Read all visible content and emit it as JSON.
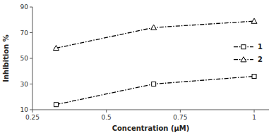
{
  "chart_data": {
    "type": "line",
    "xlabel": "Concentration (μM)",
    "ylabel": "Inhibition %",
    "x": [
      0.33,
      0.66,
      1.0
    ],
    "series": [
      {
        "name": "1",
        "color": "black",
        "marker": "square",
        "line_style": "dashdot",
        "values": [
          14,
          30,
          36
        ]
      },
      {
        "name": "2",
        "color": "black",
        "marker": "triangle",
        "line_style": "dashdot",
        "values": [
          58,
          74,
          79
        ]
      }
    ],
    "xlim": [
      0.25,
      1.05
    ],
    "xticks": [
      0.25,
      0.5,
      0.75,
      1
    ],
    "ylim": [
      10,
      90
    ],
    "yticks": [
      10,
      30,
      50,
      70,
      90
    ],
    "grid": false,
    "legend": "right"
  }
}
